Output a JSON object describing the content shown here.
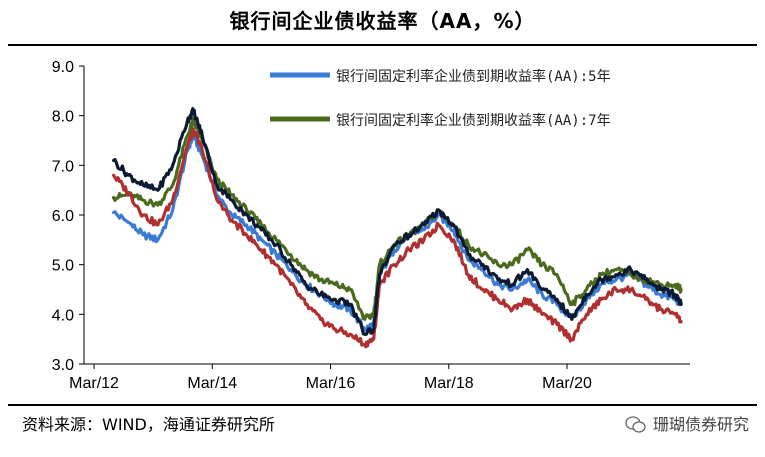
{
  "header": {
    "title": "银行间企业债收益率（AA，%）"
  },
  "footer": {
    "source": "资料来源：WIND，海通证券研究所",
    "watermark": "珊瑚债券研究"
  },
  "chart_data": {
    "type": "line",
    "title": "银行间企业债收益率（AA，%）",
    "xlabel": "",
    "ylabel": "",
    "ylim": [
      3.0,
      9.0
    ],
    "yticks": [
      "3.0",
      "4.0",
      "5.0",
      "6.0",
      "7.0",
      "8.0",
      "9.0"
    ],
    "xticks": [
      {
        "label": "Mar/12",
        "x": 2012.17
      },
      {
        "label": "Mar/14",
        "x": 2014.17
      },
      {
        "label": "Mar/16",
        "x": 2016.17
      },
      {
        "label": "Mar/18",
        "x": 2018.17
      },
      {
        "label": "Mar/20",
        "x": 2020.17
      }
    ],
    "xlim": [
      2012.0,
      2022.25
    ],
    "legend_position": "top-right",
    "x": [
      2012.5,
      2012.75,
      2013.0,
      2013.25,
      2013.5,
      2013.75,
      2013.85,
      2014.0,
      2014.25,
      2014.5,
      2014.75,
      2015.0,
      2015.25,
      2015.5,
      2015.75,
      2016.0,
      2016.25,
      2016.5,
      2016.75,
      2016.9,
      2017.0,
      2017.25,
      2017.5,
      2017.75,
      2018.0,
      2018.25,
      2018.5,
      2018.75,
      2019.0,
      2019.25,
      2019.5,
      2019.75,
      2020.0,
      2020.25,
      2020.5,
      2020.75,
      2021.0,
      2021.25,
      2021.5,
      2021.75,
      2022.0,
      2022.1
    ],
    "series": [
      {
        "name": "银行间固定利率企业债到期收益率(AA):5年",
        "color": "#3a7bd5",
        "values": [
          6.05,
          5.85,
          5.6,
          5.5,
          6.1,
          7.3,
          7.6,
          7.2,
          6.4,
          6.0,
          5.8,
          5.5,
          5.2,
          4.9,
          4.6,
          4.4,
          4.2,
          4.1,
          3.7,
          3.8,
          4.8,
          5.3,
          5.6,
          5.7,
          6.0,
          5.7,
          5.1,
          4.9,
          4.6,
          4.5,
          4.7,
          4.4,
          4.2,
          3.9,
          4.3,
          4.6,
          4.7,
          4.8,
          4.6,
          4.4,
          4.3,
          4.2
        ]
      },
      {
        "name": "银行间固定利率企业债到期收益率(AA):7年",
        "color": "#4a6b1e",
        "values": [
          6.35,
          6.4,
          6.3,
          6.2,
          6.6,
          7.6,
          7.9,
          7.5,
          6.7,
          6.4,
          6.1,
          5.8,
          5.5,
          5.2,
          4.9,
          4.7,
          4.6,
          4.5,
          3.9,
          4.0,
          5.0,
          5.4,
          5.6,
          5.8,
          6.1,
          5.8,
          5.4,
          5.2,
          5.0,
          5.0,
          5.3,
          5.0,
          4.8,
          4.2,
          4.5,
          4.8,
          4.9,
          4.8,
          4.7,
          4.6,
          4.6,
          4.5
        ]
      },
      {
        "name": "",
        "color": "#b03030",
        "values": [
          6.8,
          6.45,
          6.0,
          5.8,
          6.3,
          7.4,
          7.7,
          7.3,
          6.3,
          5.9,
          5.6,
          5.3,
          5.0,
          4.6,
          4.2,
          3.9,
          3.7,
          3.6,
          3.4,
          3.5,
          4.6,
          5.0,
          5.3,
          5.5,
          5.8,
          5.5,
          4.8,
          4.5,
          4.3,
          4.1,
          4.3,
          4.0,
          3.8,
          3.5,
          4.0,
          4.3,
          4.5,
          4.5,
          4.3,
          4.1,
          4.0,
          3.85
        ]
      },
      {
        "name": "",
        "color": "#0d1a33",
        "values": [
          7.1,
          6.8,
          6.6,
          6.5,
          7.0,
          7.9,
          8.1,
          7.6,
          6.6,
          6.3,
          6.0,
          5.7,
          5.4,
          5.0,
          4.6,
          4.4,
          4.3,
          4.2,
          3.6,
          3.7,
          4.8,
          5.4,
          5.6,
          5.8,
          6.1,
          5.8,
          5.2,
          5.0,
          4.7,
          4.6,
          4.9,
          4.5,
          4.3,
          3.9,
          4.4,
          4.7,
          4.8,
          4.9,
          4.7,
          4.5,
          4.4,
          4.2
        ]
      }
    ]
  }
}
